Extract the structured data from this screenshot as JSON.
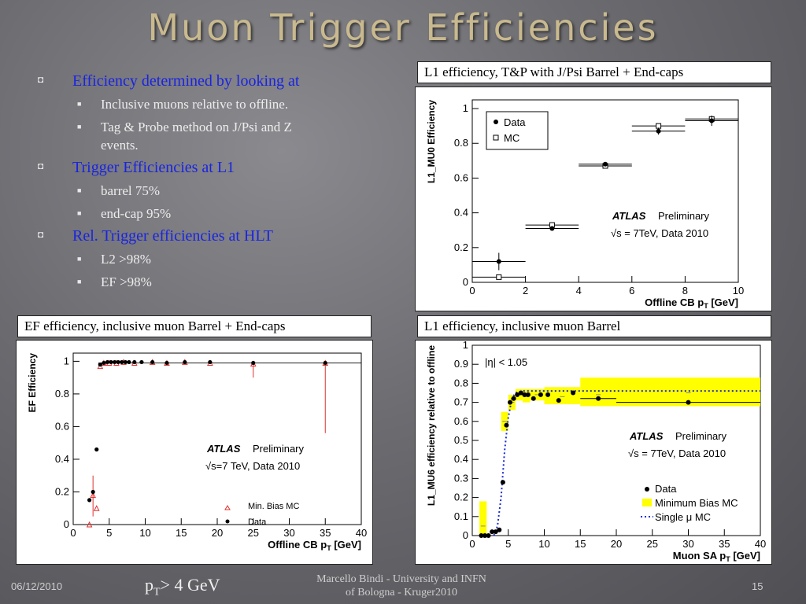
{
  "title": "Muon Trigger Efficiencies",
  "bullets": [
    {
      "text": "Efficiency determined by looking at",
      "sub": [
        "Inclusive muons relative to offline.",
        "Tag & Probe method on J/Psi and Z events."
      ]
    },
    {
      "text": "Trigger Efficiencies at L1",
      "sub": [
        "barrel 75%",
        "end-cap 95%"
      ]
    },
    {
      "text": "Rel. Trigger efficiencies at HLT",
      "sub": [
        "L2 >98%",
        "EF >98%"
      ]
    }
  ],
  "captions": {
    "tl": "L1 efficiency, T&P with J/Psi Barrel + End-caps",
    "bl": "EF efficiency, inclusive muon Barrel + End-caps",
    "br": "L1 efficiency, inclusive muon Barrel"
  },
  "footer": {
    "date": "06/12/2010",
    "pt_main": "p",
    "pt_sub": "T",
    "pt_rest": "> 4 GeV",
    "author_line1": "Marcello Bindi - University and INFN",
    "author_line2": "of Bologna - Kruger2010",
    "page": "15"
  },
  "colors": {
    "bullet_main": "#1a24e0",
    "title": "#c9b98f",
    "mc_red": "#e03030",
    "band_yellow": "#ffff00",
    "mc_blue": "#1a2ad8"
  },
  "chart_data": [
    {
      "type": "scatter",
      "id": "tp",
      "xlabel": "Offline CB p",
      "xlabel_sub": "T",
      "xlabel_unit": " [GeV]",
      "ylabel": "L1_MU0 Efficiency",
      "xlim": [
        0,
        10
      ],
      "ylim": [
        0,
        1.05
      ],
      "xticks": [
        0,
        2,
        4,
        6,
        8,
        10
      ],
      "yticks": [
        0,
        0.2,
        0.4,
        0.6,
        0.8,
        1
      ],
      "legend": [
        "Data",
        "MC"
      ],
      "atlas_label": "ATLAS",
      "prelim_label": "Preliminary",
      "energy_label": "√s = 7TeV, Data 2010",
      "series": [
        {
          "name": "Data",
          "x": [
            1,
            3,
            5,
            7,
            9
          ],
          "y": [
            0.12,
            0.31,
            0.68,
            0.87,
            0.93
          ],
          "xerr": [
            1,
            1,
            1,
            1,
            1
          ],
          "yerr": [
            0.05,
            0.01,
            0.01,
            0.02,
            0.03
          ]
        },
        {
          "name": "MC",
          "x": [
            1,
            3,
            5,
            7,
            9
          ],
          "y": [
            0.03,
            0.33,
            0.67,
            0.9,
            0.94
          ],
          "xerr": [
            1,
            1,
            1,
            1,
            1
          ]
        }
      ]
    },
    {
      "type": "scatter",
      "id": "ef",
      "xlabel": "Offline CB p",
      "xlabel_sub": "T",
      "xlabel_unit": " [GeV]",
      "ylabel": "EF Efficiency",
      "xlim": [
        0,
        40
      ],
      "ylim": [
        0,
        1.05
      ],
      "xticks": [
        0,
        5,
        10,
        15,
        20,
        25,
        30,
        35,
        40
      ],
      "yticks": [
        0,
        0.2,
        0.4,
        0.6,
        0.8,
        1
      ],
      "legend": [
        "Min. Bias MC",
        "Data"
      ],
      "atlas_label": "ATLAS",
      "prelim_label": "Preliminary",
      "energy_label": "√s=7 TeV, Data 2010",
      "series": [
        {
          "name": "Data",
          "x": [
            2.25,
            2.75,
            3.25,
            3.75,
            4.25,
            4.75,
            5.25,
            5.75,
            6.25,
            6.75,
            7.25,
            7.75,
            8.5,
            9.5,
            11,
            13,
            15.5,
            19,
            25,
            35
          ],
          "y": [
            0.15,
            0.2,
            0.46,
            0.98,
            0.99,
            0.995,
            0.995,
            0.995,
            0.995,
            0.995,
            0.995,
            0.995,
            0.995,
            0.995,
            0.995,
            0.99,
            0.995,
            0.995,
            0.99,
            0.99
          ]
        },
        {
          "name": "Min. Bias MC",
          "x": [
            2.25,
            2.75,
            3.25,
            3.75,
            4.25,
            5.0,
            6.0,
            7.0,
            8.5,
            11,
            13,
            15.5,
            19,
            25,
            35
          ],
          "y": [
            0.0,
            0.18,
            0.1,
            0.97,
            0.99,
            0.99,
            0.99,
            0.995,
            0.99,
            0.995,
            0.99,
            0.995,
            0.99,
            0.985,
            0.99
          ]
        }
      ]
    },
    {
      "type": "scatter",
      "id": "sa",
      "xlabel": "Muon SA p",
      "xlabel_sub": "T",
      "xlabel_unit": " [GeV]",
      "ylabel": "L1_MU6 efficiency relative to offline",
      "xlim": [
        0,
        40
      ],
      "ylim": [
        0,
        1
      ],
      "xticks": [
        0,
        5,
        10,
        15,
        20,
        25,
        30,
        35,
        40
      ],
      "yticks": [
        0,
        0.1,
        0.2,
        0.3,
        0.4,
        0.5,
        0.6,
        0.7,
        0.8,
        0.9,
        1
      ],
      "eta_label": "|η| < 1.05",
      "legend": [
        "Data",
        "Minimum Bias MC",
        "Single μ MC"
      ],
      "atlas_label": "ATLAS",
      "prelim_label": "Preliminary",
      "energy_label": "√s = 7TeV, Data 2010",
      "series": [
        {
          "name": "Data",
          "x": [
            1.25,
            1.75,
            2.25,
            2.75,
            3.25,
            3.75,
            4.25,
            4.75,
            5.25,
            5.75,
            6.25,
            6.75,
            7.25,
            7.75,
            8.5,
            9.5,
            10.5,
            12,
            14,
            17.5,
            30
          ],
          "y": [
            0.0,
            0.0,
            0.0,
            0.02,
            0.02,
            0.03,
            0.28,
            0.58,
            0.7,
            0.72,
            0.74,
            0.75,
            0.74,
            0.74,
            0.72,
            0.74,
            0.74,
            0.71,
            0.75,
            0.72,
            0.7
          ]
        },
        {
          "name": "Minimum Bias MC",
          "x": [
            1.5,
            4.5,
            5.5,
            6.5,
            7.5,
            9,
            12.5,
            17.5,
            30
          ],
          "y": [
            0.05,
            0.6,
            0.7,
            0.74,
            0.73,
            0.74,
            0.73,
            0.74,
            0.75
          ]
        },
        {
          "name": "Single μ MC",
          "x": [
            3,
            3.5,
            4,
            4.5,
            5,
            5.5,
            6,
            7,
            10,
            20,
            40
          ],
          "y": [
            0.0,
            0.05,
            0.2,
            0.45,
            0.62,
            0.72,
            0.75,
            0.76,
            0.76,
            0.76,
            0.76
          ]
        }
      ]
    }
  ]
}
